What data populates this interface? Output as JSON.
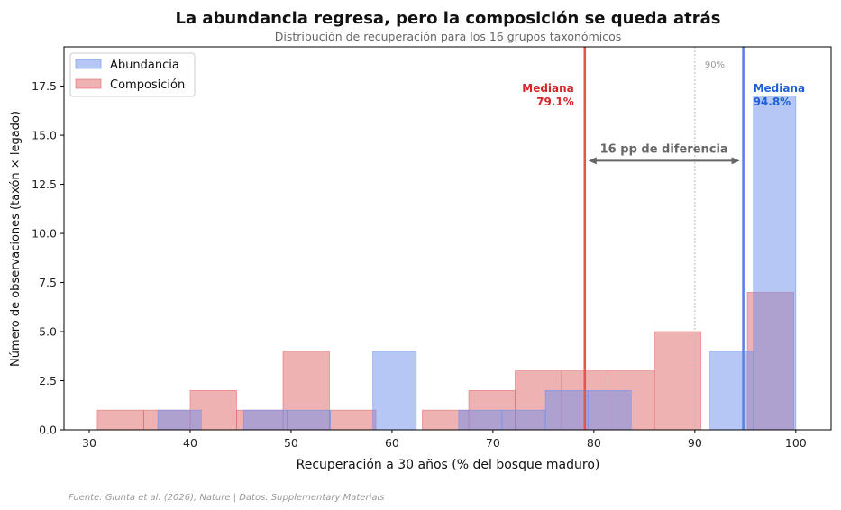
{
  "chart_data": {
    "type": "bar",
    "title": "La abundancia regresa, pero la composición se queda atrás",
    "subtitle": "Distribución de recuperación para los 16 grupos taxonómicos",
    "xlabel": "Recuperación a 30 años (% del bosque maduro)",
    "ylabel": "Número de observaciones (taxón × legado)",
    "xlim": [
      27.5,
      103.5
    ],
    "ylim": [
      0,
      19.5
    ],
    "xticks": [
      30,
      40,
      50,
      60,
      70,
      80,
      90,
      100
    ],
    "yticks": [
      0.0,
      2.5,
      5.0,
      7.5,
      10.0,
      12.5,
      15.0,
      17.5
    ],
    "legend_position": "upper-left",
    "series": [
      {
        "name": "Abundancia",
        "color": "#6d8fee",
        "bins": [
          {
            "x0": 36.8,
            "x1": 41.1,
            "count": 1
          },
          {
            "x0": 45.3,
            "x1": 49.6,
            "count": 1
          },
          {
            "x0": 49.6,
            "x1": 53.9,
            "count": 1
          },
          {
            "x0": 58.1,
            "x1": 62.4,
            "count": 4
          },
          {
            "x0": 66.6,
            "x1": 70.9,
            "count": 1
          },
          {
            "x0": 70.9,
            "x1": 75.2,
            "count": 1
          },
          {
            "x0": 75.2,
            "x1": 79.4,
            "count": 2
          },
          {
            "x0": 79.4,
            "x1": 83.7,
            "count": 2
          },
          {
            "x0": 91.5,
            "x1": 95.8,
            "count": 4
          },
          {
            "x0": 95.8,
            "x1": 100.0,
            "count": 17
          }
        ]
      },
      {
        "name": "Composición",
        "color": "#e06666",
        "bins": [
          {
            "x0": 30.8,
            "x1": 35.4,
            "count": 1
          },
          {
            "x0": 35.4,
            "x1": 40.0,
            "count": 1
          },
          {
            "x0": 40.0,
            "x1": 44.6,
            "count": 2
          },
          {
            "x0": 44.6,
            "x1": 49.2,
            "count": 1
          },
          {
            "x0": 49.2,
            "x1": 53.8,
            "count": 4
          },
          {
            "x0": 53.8,
            "x1": 58.4,
            "count": 1
          },
          {
            "x0": 63.0,
            "x1": 67.6,
            "count": 1
          },
          {
            "x0": 67.6,
            "x1": 72.2,
            "count": 2
          },
          {
            "x0": 72.2,
            "x1": 76.8,
            "count": 3
          },
          {
            "x0": 76.8,
            "x1": 81.4,
            "count": 3
          },
          {
            "x0": 81.4,
            "x1": 86.0,
            "count": 3
          },
          {
            "x0": 86.0,
            "x1": 90.6,
            "count": 5
          },
          {
            "x0": 95.2,
            "x1": 99.8,
            "count": 7
          }
        ]
      }
    ],
    "medians": [
      {
        "series": "Composición",
        "value": 79.1,
        "label": "Mediana",
        "value_label": "79.1%",
        "color": "#d62728"
      },
      {
        "series": "Abundancia",
        "value": 94.8,
        "label": "Mediana",
        "value_label": "94.8%",
        "color": "#1f5fd6"
      }
    ],
    "reference_line": {
      "value": 90,
      "label": "90%"
    },
    "annotation": {
      "text": "16 pp de diferencia",
      "from": 79.1,
      "to": 94.8,
      "y": 13.7,
      "label_y": 14.1
    },
    "source": "Fuente: Giunta et al. (2026), Nature | Datos: Supplementary Materials"
  }
}
